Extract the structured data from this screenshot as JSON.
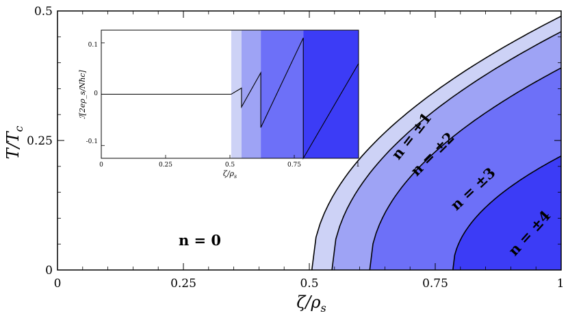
{
  "chart_data": [
    {
      "type": "area",
      "xlabel": "ζ/ρ_s",
      "ylabel": "T/T_c",
      "xlim": [
        0,
        1
      ],
      "ylim": [
        0,
        0.5
      ],
      "xticks": [
        "0",
        "0.25",
        "0.5",
        "0.75",
        "1"
      ],
      "yticks": [
        "0",
        "0.25",
        "0.5"
      ],
      "boundary_onsets_at_T0": [
        0.505,
        0.545,
        0.62,
        0.785
      ],
      "boundary_values_at_x1": [
        0.49,
        0.46,
        0.39,
        0.22
      ],
      "regions": [
        {
          "label": "n = 0",
          "color": "#ffffff"
        },
        {
          "label": "n = ±1",
          "color": "#cdd2f6"
        },
        {
          "label": "n = ±2",
          "color": "#9ea3f5"
        },
        {
          "label": "n = ±3",
          "color": "#6d70f8"
        },
        {
          "label": "n = ±4",
          "color": "#3c3cf6"
        }
      ]
    },
    {
      "type": "line",
      "xlabel": "ζ/ρ_s",
      "ylabel": "ℐ[2eρ_s/Nħc]",
      "xlim": [
        0,
        1
      ],
      "ylim": [
        -0.125,
        0.125
      ],
      "xticks": [
        "0",
        "0.25",
        "0.5",
        "0.75",
        "1"
      ],
      "yticks": [
        "-0.1",
        "0",
        "0.1"
      ],
      "band_edges": [
        0.505,
        0.545,
        0.62,
        0.785,
        1.0
      ],
      "x": [
        0,
        0.505,
        0.545,
        0.545,
        0.62,
        0.62,
        0.785,
        0.785,
        1.0
      ],
      "y": [
        0,
        0,
        0.012,
        -0.025,
        0.042,
        -0.065,
        0.11,
        -0.135,
        0.06
      ]
    }
  ],
  "main_labels": {
    "n0": "n = 0",
    "n1": "n = ±1",
    "n2": "n = ±2",
    "n3": "n = ±3",
    "n4": "n = ±4"
  },
  "main_axes": {
    "xlabel": "ζ/ρ",
    "xlabel_sub": "s",
    "ylabel": "T/T",
    "ylabel_sub": "c",
    "xticks": [
      "0",
      "0.25",
      "0.5",
      "0.75",
      "1"
    ],
    "yticks": [
      "0",
      "0.25",
      "0.5"
    ]
  },
  "inset_axes": {
    "xlabel": "ζ/ρ",
    "xlabel_sub": "s",
    "ylabel": "ℐ[2eρ_s/Nħc]",
    "xticks": [
      "0",
      "0.25",
      "0.5",
      "0.75",
      "1"
    ],
    "yticks": [
      "-0.1",
      "0",
      "0.1"
    ]
  }
}
